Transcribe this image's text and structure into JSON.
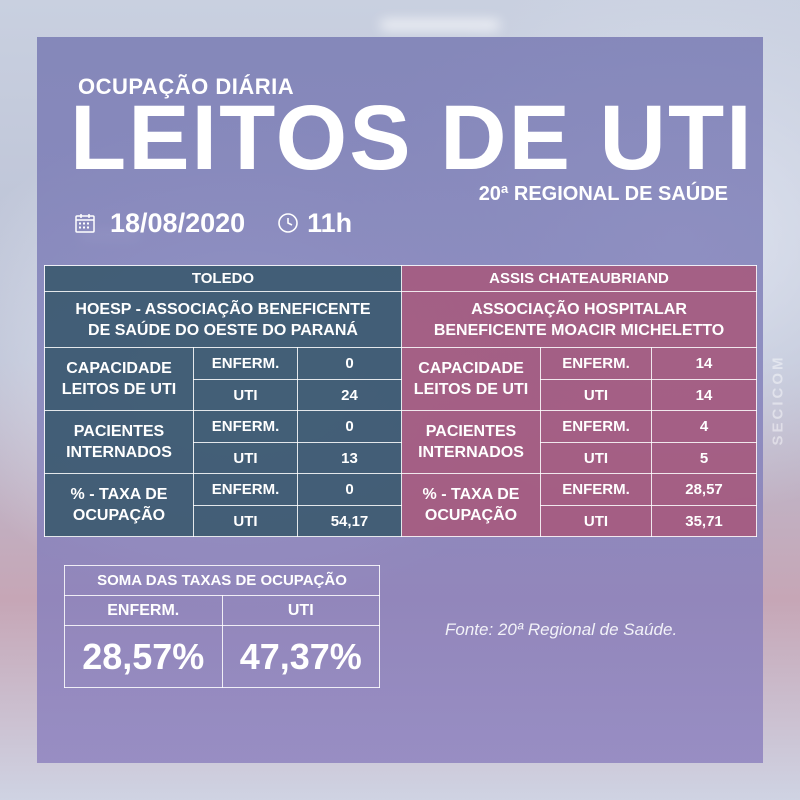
{
  "header": {
    "kicker": "OCUPAÇÃO DIÁRIA",
    "title": "LEITOS DE UTI",
    "regional": "20ª REGIONAL DE SAÚDE",
    "date": "18/08/2020",
    "time": "11h",
    "date_icon": "calendar-icon",
    "time_icon": "clock-icon"
  },
  "side_credit": "SECICOM",
  "labels": {
    "capacity": "CAPACIDADE LEITOS DE UTI",
    "patients": "PACIENTES INTERNADOS",
    "rate": "% - TAXA DE OCUPAÇÃO",
    "enferm": "ENFERM.",
    "uti": "UTI"
  },
  "toledo": {
    "city": "TOLEDO",
    "hospital": "HOESP - ASSOCIAÇÃO BENEFICENTE DE SAÚDE DO OESTE DO PARANÁ",
    "capacity_enferm": "0",
    "capacity_uti": "24",
    "patients_enferm": "0",
    "patients_uti": "13",
    "rate_enferm": "0",
    "rate_uti": "54,17"
  },
  "assis": {
    "city": "ASSIS CHATEAUBRIAND",
    "hospital": "ASSOCIAÇÃO HOSPITALAR BENEFICENTE MOACIR MICHELETTO",
    "capacity_enferm": "14",
    "capacity_uti": "14",
    "patients_enferm": "4",
    "patients_uti": "5",
    "rate_enferm": "28,57",
    "rate_uti": "35,71"
  },
  "summary": {
    "title": "SOMA DAS TAXAS DE OCUPAÇÃO",
    "enferm_label": "ENFERM.",
    "uti_label": "UTI",
    "enferm_value": "28,57%",
    "uti_value": "47,37%"
  },
  "source": "Fonte: 20ª Regional de Saúde.",
  "colors": {
    "toledo": "#38586c",
    "assis": "#a85678",
    "panel": "#7678b2"
  }
}
